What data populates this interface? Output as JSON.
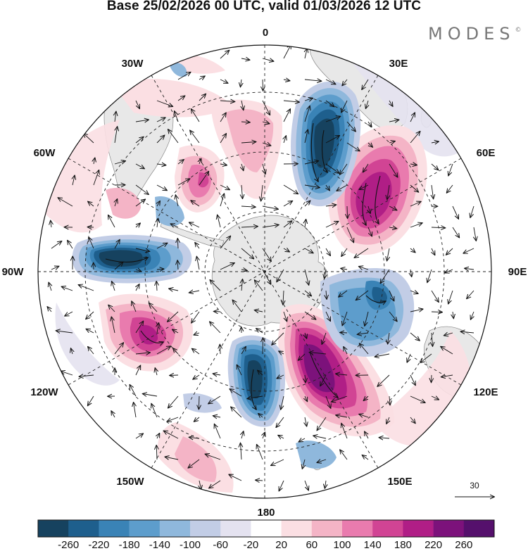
{
  "title": "Base 25/02/2026 00 UTC, valid 01/03/2026 12 UTC",
  "brand": "MODES",
  "brand_mark": "©",
  "meridians": {
    "top": "0",
    "top_right": "30E",
    "right_upper": "60E",
    "right": "90E",
    "right_lower": "120E",
    "bottom_right": "150E",
    "bottom": "180",
    "bottom_left": "150W",
    "left_lower": "120W",
    "left": "90W",
    "left_upper": "60W",
    "top_left": "30W"
  },
  "reference_vector": {
    "label": "30"
  },
  "colorbar": {
    "labels": [
      "-260",
      "-220",
      "-180",
      "-140",
      "-100",
      "-60",
      "-20",
      "20",
      "60",
      "100",
      "140",
      "180",
      "220",
      "260"
    ],
    "colors": [
      "#16425f",
      "#1e5f8d",
      "#3a83b6",
      "#5d9dcc",
      "#8fb8dc",
      "#c2cde6",
      "#e4e2f0",
      "#ffffff",
      "#fbdfe3",
      "#f4b4c6",
      "#e97bae",
      "#d14494",
      "#b01e86",
      "#7c127b",
      "#55106c"
    ]
  },
  "palette": {
    "land": "#e8e8e8",
    "coast": "#8a8a8a",
    "grid": "#222222"
  }
}
